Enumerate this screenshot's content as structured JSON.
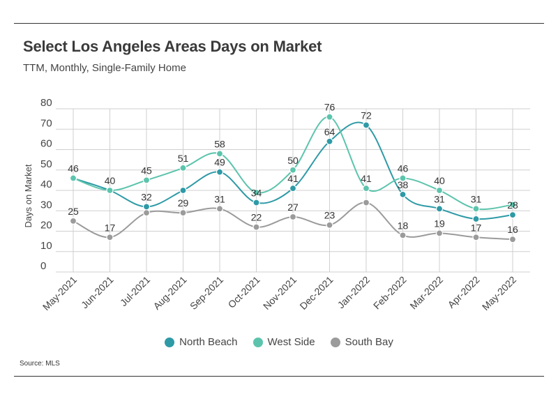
{
  "header": {
    "title": "Select Los Angeles Areas Days on Market",
    "subtitle": "TTM, Monthly, Single-Family Home"
  },
  "footer": {
    "source": "Source: MLS"
  },
  "colors": {
    "north_beach": "#2e9aa6",
    "west_side": "#5cc4ad",
    "south_bay": "#9b9b9b",
    "grid": "#cfcfcf"
  },
  "chart_data": {
    "type": "line",
    "title": "Select Los Angeles Areas Days on Market",
    "subtitle": "TTM, Monthly, Single-Family Home",
    "xlabel": "",
    "ylabel": "Days on Market",
    "ylim": [
      0,
      80
    ],
    "yticks": [
      0,
      10,
      20,
      30,
      40,
      50,
      60,
      70,
      80
    ],
    "grid": true,
    "legend_position": "bottom",
    "categories": [
      "May-2021",
      "Jun-2021",
      "Jul-2021",
      "Aug-2021",
      "Sep-2021",
      "Oct-2021",
      "Nov-2021",
      "Dec-2021",
      "Jan-2022",
      "Feb-2022",
      "Mar-2022",
      "Apr-2022",
      "May-2022"
    ],
    "series": [
      {
        "name": "North Beach",
        "color": "#2e9aa6",
        "values": [
          46,
          40,
          32,
          40,
          49,
          34,
          41,
          64,
          72,
          38,
          31,
          26,
          28
        ],
        "labels": [
          "",
          "",
          "32",
          "",
          "49",
          "34",
          "41",
          "64",
          "72",
          "38",
          "31",
          "",
          "28"
        ]
      },
      {
        "name": "West Side",
        "color": "#5cc4ad",
        "values": [
          46,
          40,
          45,
          51,
          58,
          39,
          50,
          76,
          41,
          46,
          40,
          31,
          33
        ],
        "labels": [
          "46",
          "40",
          "45",
          "51",
          "58",
          "",
          "50",
          "76",
          "41",
          "46",
          "40",
          "31",
          ""
        ]
      },
      {
        "name": "South Bay",
        "color": "#9b9b9b",
        "values": [
          25,
          17,
          29,
          29,
          31,
          22,
          27,
          23,
          34,
          18,
          19,
          17,
          16
        ],
        "labels": [
          "25",
          "17",
          "",
          "29",
          "31",
          "22",
          "27",
          "23",
          "",
          "18",
          "19",
          "17",
          "16"
        ]
      }
    ]
  }
}
